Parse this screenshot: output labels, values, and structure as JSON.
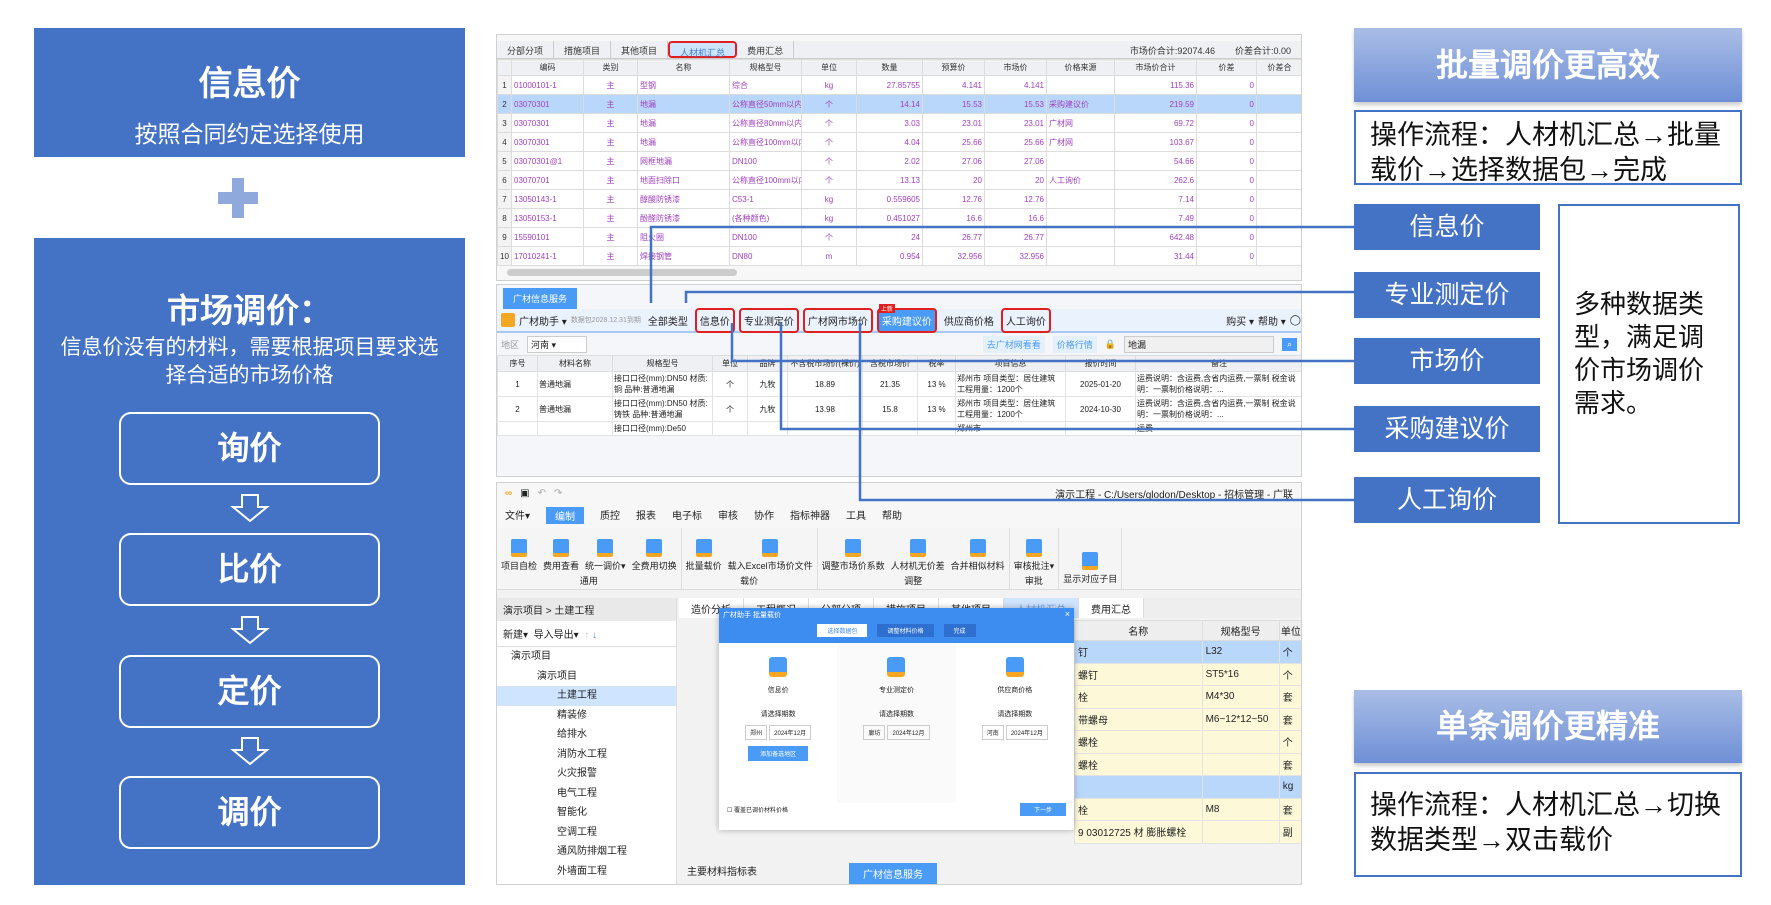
{
  "left": {
    "info_title": "信息价",
    "info_sub": "按照合同约定选择使用",
    "market_title": "市场调价：",
    "market_sub": "信息价没有的材料，需要根据项目要求选择合适的市场价格",
    "steps": [
      "询价",
      "比价",
      "定价",
      "调价"
    ]
  },
  "right": {
    "batch_title": "批量调价更高效",
    "batch_flow": "操作流程：人材机汇总→批量载价→选择数据包→完成",
    "labels": [
      "信息价",
      "专业测定价",
      "市场价",
      "采购建议价",
      "人工询价"
    ],
    "desc": "多种数据类型，满足调价市场调价需求。",
    "single_title": "单条调价更精准",
    "single_flow": "操作流程：人材机汇总→切换数据类型→双击载价"
  },
  "top_table": {
    "tabs": [
      "分部分项",
      "措施项目",
      "其他项目",
      "人材机汇总",
      "费用汇总"
    ],
    "active_tab": 3,
    "market_total": "市场价合计:92074.46",
    "diff_total": "价差合计:0.00",
    "columns": [
      "",
      "编码",
      "类别",
      "名称",
      "规格型号",
      "单位",
      "数量",
      "预算价",
      "市场价",
      "价格来源",
      "市场价合计",
      "价差",
      "价差合"
    ],
    "rows": [
      [
        "1",
        "01000101-1",
        "主",
        "型钢",
        "综合",
        "kg",
        "27.85755",
        "4.141",
        "4.141",
        "",
        "115.36",
        "0",
        ""
      ],
      [
        "2",
        "03070301",
        "主",
        "地漏",
        "公称直径50mm以内",
        "个",
        "14.14",
        "15.53",
        "15.53",
        "采购建议价",
        "219.59",
        "0",
        ""
      ],
      [
        "3",
        "03070301",
        "主",
        "地漏",
        "公称直径80mm以内",
        "个",
        "3.03",
        "23.01",
        "23.01",
        "广材网",
        "69.72",
        "0",
        ""
      ],
      [
        "4",
        "03070301",
        "主",
        "地漏",
        "公称直径100mm以内",
        "个",
        "4.04",
        "25.66",
        "25.66",
        "广材网",
        "103.67",
        "0",
        ""
      ],
      [
        "5",
        "03070301@1",
        "主",
        "网框地漏",
        "DN100",
        "个",
        "2.02",
        "27.06",
        "27.06",
        "",
        "54.66",
        "0",
        ""
      ],
      [
        "6",
        "03070701",
        "主",
        "地面扫除口",
        "公称直径100mm以内",
        "个",
        "13.13",
        "20",
        "20",
        "人工询价",
        "262.6",
        "0",
        ""
      ],
      [
        "7",
        "13050143-1",
        "主",
        "醇酸防锈漆",
        "C53-1",
        "kg",
        "0.559605",
        "12.76",
        "12.76",
        "",
        "7.14",
        "0",
        ""
      ],
      [
        "8",
        "13050153-1",
        "主",
        "酚醛防锈漆",
        "(各种颜色)",
        "kg",
        "0.451027",
        "16.6",
        "16.6",
        "",
        "7.49",
        "0",
        ""
      ],
      [
        "9",
        "15590101",
        "主",
        "阻火圈",
        "DN100",
        "个",
        "24",
        "26.77",
        "26.77",
        "",
        "642.48",
        "0",
        ""
      ],
      [
        "10",
        "17010241-1",
        "主",
        "焊接钢管",
        "DN80",
        "m",
        "0.954",
        "32.956",
        "32.956",
        "",
        "31.44",
        "0",
        ""
      ]
    ],
    "selected_row": 1
  },
  "gc_panel": {
    "tab": "广材信息服务",
    "assistant": "广材助手 ▾",
    "expiry": "数据包2028.12.31到期",
    "types": [
      "全部类型",
      "信息价",
      "专业测定价",
      "广材网市场价",
      "采购建议价",
      "供应商价格",
      "人工询价"
    ],
    "new_badge": "上新",
    "buy": "购买 ▾",
    "help": "帮助 ▾",
    "region_label": "地区",
    "region": "河南",
    "link_site": "去广材网看看",
    "link_trend": "价格行情",
    "search_value": "地漏",
    "columns": [
      "序号",
      "材料名称",
      "规格型号",
      "单位",
      "品牌",
      "不含税市场价(裸价)",
      "含税市场价",
      "税率",
      "项目信息",
      "报价时间",
      "备注"
    ],
    "rows": [
      [
        "1",
        "普通地漏",
        "接口口径(mm):DN50 材质:铜 品种:普通地漏",
        "个",
        "九牧",
        "18.89",
        "21.35",
        "13 %",
        "郑州市 项目类型：居住建筑 工程用量：1200个",
        "2025-01-20",
        "运费说明：含运费,含省内运费,一票制 税金说明：一票制价格说明：..."
      ],
      [
        "2",
        "普通地漏",
        "接口口径(mm):DN50 材质:铸铁 品种:普通地漏",
        "个",
        "九牧",
        "13.98",
        "15.8",
        "13 %",
        "郑州市 项目类型：居住建筑 工程用量：1200个",
        "2024-10-30",
        "运费说明：含运费,含省内运费,一票制 税金说明：一票制价格说明：..."
      ],
      [
        "",
        "",
        "接口口径(mm):De50",
        "",
        "",
        "",
        "",
        "",
        "郑州市",
        "",
        "运费"
      ]
    ]
  },
  "software": {
    "title": "演示工程 - C:/Users/glodon/Desktop - 招标管理 - 广联",
    "menus": [
      "文件▾",
      "编制",
      "质控",
      "报表",
      "电子标",
      "审核",
      "协作",
      "指标神器",
      "工具",
      "帮助"
    ],
    "active_menu": 1,
    "groups": [
      {
        "label": "通用",
        "buttons": [
          "项目自检",
          "费用查看",
          "统一调价▾",
          "全费用切换"
        ]
      },
      {
        "label": "载价",
        "buttons": [
          "批量载价",
          "载入Excel市场价文件"
        ]
      },
      {
        "label": "调整",
        "buttons": [
          "调整市场价系数",
          "人材机无价差",
          "合并相似材料"
        ]
      },
      {
        "label": "审批",
        "buttons": [
          "审核批注▾"
        ]
      },
      {
        "label": "",
        "buttons": [
          "显示对应子目"
        ]
      }
    ],
    "breadcrumb": "演示项目 > 土建工程",
    "new": "新建▾",
    "import_export": "导入导出▾",
    "tree": [
      "演示项目",
      "演示项目",
      "土建工程",
      "精装修",
      "给排水",
      "消防水工程",
      "火灾报警",
      "电气工程",
      "智能化",
      "空调工程",
      "通风防排烟工程",
      "外墙面工程"
    ],
    "tree_selected": 2,
    "tabs": [
      "造价分析",
      "工程概况",
      "分部分项",
      "措施项目",
      "其他项目",
      "人材机汇总",
      "费用汇总"
    ],
    "active_tab": 5,
    "right_columns": [
      "名称",
      "规格型号",
      "单位"
    ],
    "right_rows": [
      [
        "钉",
        "L32",
        "个"
      ],
      [
        "螺钉",
        "ST5*16",
        "个"
      ],
      [
        "栓",
        "M4*30",
        "套"
      ],
      [
        "带螺母",
        "M6~12*12~50",
        "套"
      ],
      [
        "螺栓",
        "",
        "个"
      ],
      [
        "螺栓",
        "",
        "套"
      ],
      [
        "",
        "",
        "kg"
      ],
      [
        "栓",
        "M8",
        "套"
      ],
      [
        "9  03012725  材  膨胀螺栓",
        "",
        "副"
      ]
    ],
    "dialog": {
      "title": "广材助手 批量载价",
      "steps": [
        "选择数据包",
        "调整材料价格",
        "完成"
      ],
      "cards": [
        {
          "name": "信息价",
          "prompt": "请选择期数",
          "region": "郑州",
          "period": "2024年12月",
          "button": "添加备选地区"
        },
        {
          "name": "专业测定价",
          "prompt": "请选择期数",
          "region": "廊坊",
          "period": "2024年12月"
        },
        {
          "name": "供应商价格",
          "prompt": "请选择期数",
          "region": "河南",
          "period": "2024年12月"
        }
      ],
      "overwrite": "覆盖已调价材料价格",
      "next": "下一步"
    },
    "tree_extra": "主要材料指标表",
    "bottom_tab": "广材信息服务"
  },
  "colors": {
    "accent": "#4472c4",
    "highlight": "#e02020",
    "app_blue": "#4a9bf5"
  }
}
